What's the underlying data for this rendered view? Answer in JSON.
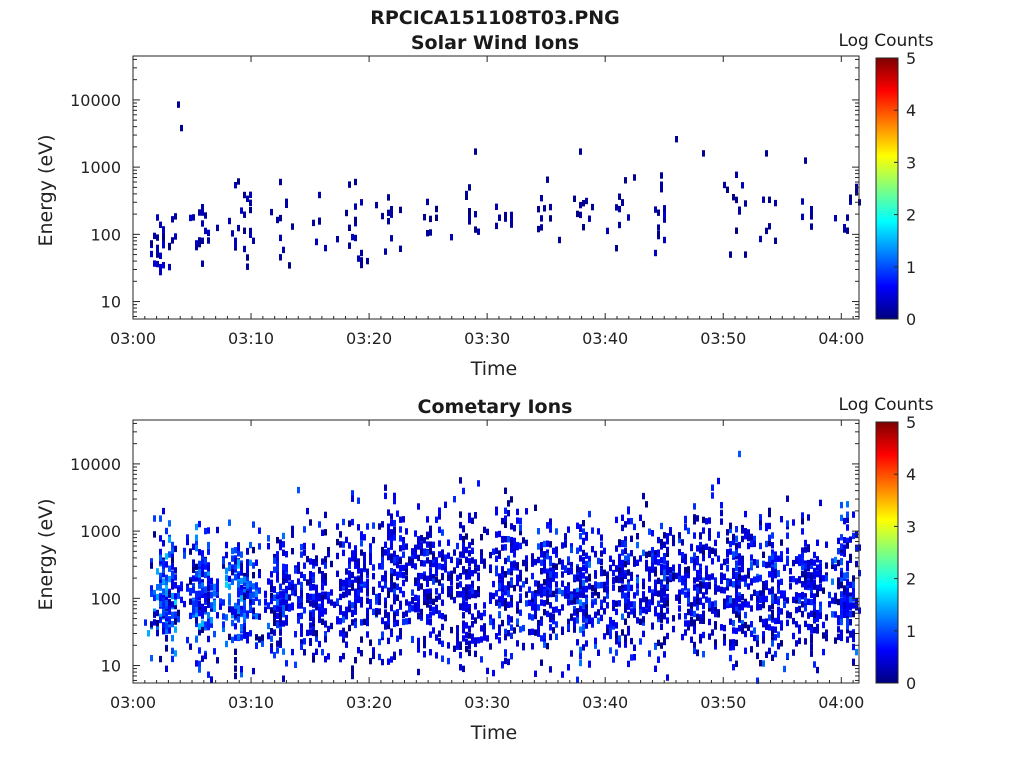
{
  "figure": {
    "title": "RPCICA151108T03.PNG"
  },
  "colors": {
    "colormap": [
      "#00007f",
      "#0000ff",
      "#007fff",
      "#00ffff",
      "#7fff7f",
      "#ffff00",
      "#ff7f00",
      "#ff0000",
      "#7f0000"
    ],
    "axis": "#262626"
  },
  "chart_data": [
    {
      "type": "heatmap",
      "title": "Solar Wind Ions",
      "xlabel": "Time",
      "ylabel": "Energy (eV)",
      "x_ticks": [
        "03:00",
        "03:10",
        "03:20",
        "03:30",
        "03:40",
        "03:50",
        "04:00"
      ],
      "x_range_minutes": [
        0,
        61.5
      ],
      "y_scale": "log",
      "y_ticks": [
        "10",
        "100",
        "1000",
        "10000"
      ],
      "y_range": [
        5.5,
        45000
      ],
      "colorbar": {
        "label": "Log Counts",
        "range": [
          0,
          5
        ],
        "ticks": [
          "0",
          "1",
          "2",
          "3",
          "4",
          "5"
        ]
      },
      "clusters": [
        {
          "t": 2.5,
          "e": 80,
          "spread_t": 0.6,
          "spread_e": 0.25,
          "intensity": 0.5,
          "n": 30
        },
        {
          "t": 5.8,
          "e": 120,
          "spread_t": 0.5,
          "spread_e": 0.25,
          "intensity": 0.4,
          "n": 18
        },
        {
          "t": 9.2,
          "e": 120,
          "spread_t": 0.5,
          "spread_e": 0.3,
          "intensity": 0.4,
          "n": 22
        },
        {
          "t": 12.2,
          "e": 130,
          "spread_t": 0.5,
          "spread_e": 0.25,
          "intensity": 0.3,
          "n": 10
        },
        {
          "t": 15.8,
          "e": 180,
          "spread_t": 0.5,
          "spread_e": 0.3,
          "intensity": 0.3,
          "n": 8
        },
        {
          "t": 18.7,
          "e": 150,
          "spread_t": 0.6,
          "spread_e": 0.4,
          "intensity": 0.3,
          "n": 12
        },
        {
          "t": 21.8,
          "e": 160,
          "spread_t": 0.4,
          "spread_e": 0.2,
          "intensity": 0.3,
          "n": 12
        },
        {
          "t": 25.2,
          "e": 180,
          "spread_t": 0.6,
          "spread_e": 0.15,
          "intensity": 0.3,
          "n": 8
        },
        {
          "t": 28.4,
          "e": 170,
          "spread_t": 0.5,
          "spread_e": 0.2,
          "intensity": 0.3,
          "n": 8
        },
        {
          "t": 31.5,
          "e": 170,
          "spread_t": 0.6,
          "spread_e": 0.2,
          "intensity": 0.3,
          "n": 10
        },
        {
          "t": 34.7,
          "e": 160,
          "spread_t": 0.5,
          "spread_e": 0.2,
          "intensity": 0.3,
          "n": 8
        },
        {
          "t": 38.0,
          "e": 200,
          "spread_t": 0.6,
          "spread_e": 0.25,
          "intensity": 0.3,
          "n": 10
        },
        {
          "t": 41.2,
          "e": 180,
          "spread_t": 0.5,
          "spread_e": 0.25,
          "intensity": 0.3,
          "n": 10
        },
        {
          "t": 44.5,
          "e": 160,
          "spread_t": 0.4,
          "spread_e": 0.2,
          "intensity": 0.35,
          "n": 12
        },
        {
          "t": 50.8,
          "e": 250,
          "spread_t": 0.5,
          "spread_e": 0.25,
          "intensity": 0.3,
          "n": 10
        },
        {
          "t": 53.8,
          "e": 200,
          "spread_t": 0.4,
          "spread_e": 0.2,
          "intensity": 0.3,
          "n": 6
        },
        {
          "t": 57.0,
          "e": 250,
          "spread_t": 0.5,
          "spread_e": 0.2,
          "intensity": 0.3,
          "n": 6
        },
        {
          "t": 60.5,
          "e": 180,
          "spread_t": 0.5,
          "spread_e": 0.25,
          "intensity": 0.3,
          "n": 8
        }
      ],
      "isolated_points": [
        {
          "t": 3.8,
          "e": 8500
        },
        {
          "t": 3.9,
          "e": 3800
        },
        {
          "t": 12.3,
          "e": 600
        },
        {
          "t": 18.3,
          "e": 550
        },
        {
          "t": 18.7,
          "e": 600
        },
        {
          "t": 19.3,
          "e": 35
        },
        {
          "t": 19.8,
          "e": 40
        },
        {
          "t": 28.5,
          "e": 500
        },
        {
          "t": 29.0,
          "e": 1700
        },
        {
          "t": 35.0,
          "e": 650
        },
        {
          "t": 37.8,
          "e": 1700
        },
        {
          "t": 42.3,
          "e": 700
        },
        {
          "t": 44.7,
          "e": 750
        },
        {
          "t": 45.8,
          "e": 2600
        },
        {
          "t": 48.2,
          "e": 1600
        },
        {
          "t": 50.5,
          "e": 50
        },
        {
          "t": 51.8,
          "e": 50
        },
        {
          "t": 53.5,
          "e": 1600
        },
        {
          "t": 54.2,
          "e": 80
        },
        {
          "t": 56.8,
          "e": 1250
        },
        {
          "t": 61.2,
          "e": 420
        },
        {
          "t": 61.3,
          "e": 300
        }
      ]
    },
    {
      "type": "heatmap",
      "title": "Cometary Ions",
      "xlabel": "Time",
      "ylabel": "Energy (eV)",
      "x_ticks": [
        "03:00",
        "03:10",
        "03:20",
        "03:30",
        "03:40",
        "03:50",
        "04:00"
      ],
      "x_range_minutes": [
        0,
        61.5
      ],
      "y_scale": "log",
      "y_ticks": [
        "10",
        "100",
        "1000",
        "10000"
      ],
      "y_range": [
        5.5,
        45000
      ],
      "colorbar": {
        "label": "Log Counts",
        "range": [
          0,
          5
        ],
        "ticks": [
          "0",
          "1",
          "2",
          "3",
          "4",
          "5"
        ]
      },
      "bursts": [
        {
          "t": 2.6,
          "e": 110,
          "spread_t": 0.7,
          "spread_e": 0.45,
          "intensity": 1.6,
          "n": 170
        },
        {
          "t": 5.7,
          "e": 110,
          "spread_t": 0.7,
          "spread_e": 0.45,
          "intensity": 1.5,
          "n": 160
        },
        {
          "t": 9.0,
          "e": 110,
          "spread_t": 0.9,
          "spread_e": 0.45,
          "intensity": 1.6,
          "n": 190
        },
        {
          "t": 12.2,
          "e": 100,
          "spread_t": 0.8,
          "spread_e": 0.45,
          "intensity": 1.2,
          "n": 150
        },
        {
          "t": 15.2,
          "e": 110,
          "spread_t": 0.9,
          "spread_e": 0.5,
          "intensity": 1.0,
          "n": 150
        },
        {
          "t": 18.6,
          "e": 130,
          "spread_t": 0.9,
          "spread_e": 0.55,
          "intensity": 1.0,
          "n": 160
        },
        {
          "t": 21.8,
          "e": 180,
          "spread_t": 0.9,
          "spread_e": 0.6,
          "intensity": 1.0,
          "n": 180
        },
        {
          "t": 25.0,
          "e": 160,
          "spread_t": 0.9,
          "spread_e": 0.55,
          "intensity": 0.9,
          "n": 170
        },
        {
          "t": 28.2,
          "e": 150,
          "spread_t": 0.9,
          "spread_e": 0.55,
          "intensity": 0.9,
          "n": 170
        },
        {
          "t": 31.6,
          "e": 150,
          "spread_t": 0.9,
          "spread_e": 0.55,
          "intensity": 1.0,
          "n": 170
        },
        {
          "t": 34.8,
          "e": 140,
          "spread_t": 0.8,
          "spread_e": 0.5,
          "intensity": 1.1,
          "n": 160
        },
        {
          "t": 38.0,
          "e": 140,
          "spread_t": 0.9,
          "spread_e": 0.5,
          "intensity": 1.2,
          "n": 170
        },
        {
          "t": 41.2,
          "e": 130,
          "spread_t": 0.8,
          "spread_e": 0.5,
          "intensity": 1.1,
          "n": 160
        },
        {
          "t": 44.5,
          "e": 140,
          "spread_t": 0.9,
          "spread_e": 0.5,
          "intensity": 1.1,
          "n": 170
        },
        {
          "t": 47.6,
          "e": 140,
          "spread_t": 0.9,
          "spread_e": 0.55,
          "intensity": 1.0,
          "n": 170
        },
        {
          "t": 50.8,
          "e": 150,
          "spread_t": 0.9,
          "spread_e": 0.55,
          "intensity": 1.1,
          "n": 170
        },
        {
          "t": 54.0,
          "e": 140,
          "spread_t": 0.9,
          "spread_e": 0.55,
          "intensity": 1.1,
          "n": 170
        },
        {
          "t": 57.2,
          "e": 120,
          "spread_t": 0.8,
          "spread_e": 0.5,
          "intensity": 1.0,
          "n": 150
        },
        {
          "t": 60.3,
          "e": 130,
          "spread_t": 0.7,
          "spread_e": 0.5,
          "intensity": 1.2,
          "n": 140
        }
      ],
      "isolated_points": [
        {
          "t": 8.6,
          "e": 7
        },
        {
          "t": 8.6,
          "e": 9
        },
        {
          "t": 8.6,
          "e": 12
        },
        {
          "t": 8.6,
          "e": 16
        },
        {
          "t": 18.4,
          "e": 7
        },
        {
          "t": 18.4,
          "e": 9
        },
        {
          "t": 18.6,
          "e": 12
        },
        {
          "t": 47.4,
          "e": 1400
        },
        {
          "t": 47.5,
          "e": 1600
        },
        {
          "t": 50.5,
          "e": 1200
        },
        {
          "t": 53.8,
          "e": 1800
        },
        {
          "t": 53.9,
          "e": 2000
        },
        {
          "t": 56.7,
          "e": 1400
        },
        {
          "t": 49.2,
          "e": 22
        },
        {
          "t": 2.7,
          "e": 18
        }
      ]
    }
  ]
}
